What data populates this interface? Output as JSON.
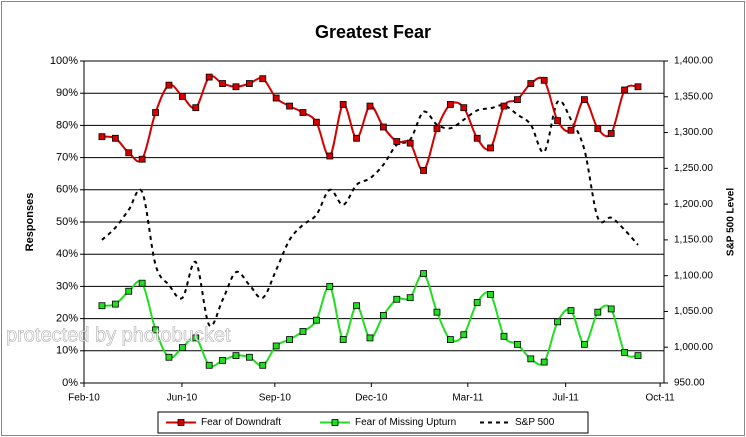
{
  "chart_data": {
    "type": "line",
    "title": "Greatest Fear",
    "y_label": "Responses",
    "y2_label": "S&P 500 Level",
    "watermark": "protected by photobucket",
    "categories": [
      null,
      null,
      null,
      null,
      null,
      null,
      null,
      null,
      null,
      null,
      null,
      null,
      null,
      null,
      null,
      null,
      null,
      null,
      null,
      null,
      null,
      null,
      null,
      null,
      null,
      null,
      null,
      null,
      null,
      null,
      null,
      null,
      null,
      null,
      null,
      null,
      null,
      null,
      null,
      null,
      null
    ],
    "xlim": [
      -1.34,
      41.94
    ],
    "xticks": [
      {
        "value": -1.34,
        "label": "Feb-10"
      },
      {
        "value": 5.97,
        "label": "Jun-10"
      },
      {
        "value": 12.9,
        "label": "Sep-10"
      },
      {
        "value": 20.1,
        "label": "Dec-10"
      },
      {
        "value": 27.3,
        "label": "Mar-11"
      },
      {
        "value": 34.6,
        "label": "Jul-11"
      },
      {
        "value": 41.65,
        "label": "Oct-11"
      }
    ],
    "ylim": [
      0,
      100
    ],
    "yticks": [
      {
        "value": 0,
        "label": "0%"
      },
      {
        "value": 10,
        "label": "10%"
      },
      {
        "value": 20,
        "label": "20%"
      },
      {
        "value": 30,
        "label": "30%"
      },
      {
        "value": 40,
        "label": "40%"
      },
      {
        "value": 50,
        "label": "50%"
      },
      {
        "value": 60,
        "label": "60%"
      },
      {
        "value": 70,
        "label": "70%"
      },
      {
        "value": 80,
        "label": "80%"
      },
      {
        "value": 90,
        "label": "90%"
      },
      {
        "value": 100,
        "label": "100%"
      }
    ],
    "y2lim": [
      950,
      1400
    ],
    "y2ticks": [
      {
        "value": 950,
        "label": "950.00"
      },
      {
        "value": 1000,
        "label": "1,000.00"
      },
      {
        "value": 1050,
        "label": "1,050.00"
      },
      {
        "value": 1100,
        "label": "1,100.00"
      },
      {
        "value": 1150,
        "label": "1,150.00"
      },
      {
        "value": 1200,
        "label": "1,200.00"
      },
      {
        "value": 1250,
        "label": "1,250.00"
      },
      {
        "value": 1300,
        "label": "1,300.00"
      },
      {
        "value": 1350,
        "label": "1,350.00"
      },
      {
        "value": 1400,
        "label": "1,400.00"
      }
    ],
    "grid": true,
    "legend": "bottom",
    "series": [
      {
        "name": "Fear of Downdraft",
        "color": "#d40000",
        "marker": "square",
        "style": "solid",
        "values": [
          76.5,
          76,
          71.5,
          69.5,
          84,
          92.5,
          89,
          85.5,
          95,
          93,
          92,
          93,
          94.5,
          88.5,
          86,
          84,
          81,
          70.5,
          86.5,
          76,
          86,
          79.5,
          75,
          74.5,
          66,
          79,
          86.5,
          85.5,
          76,
          73,
          86,
          88,
          93,
          94,
          81.5,
          78.5,
          88,
          79,
          77.5,
          91,
          92
        ]
      },
      {
        "name": "Fear of Missing Upturn",
        "color": "#22dd22",
        "marker": "square",
        "style": "solid",
        "values": [
          24,
          24.5,
          28.5,
          31,
          16.5,
          8,
          11,
          14,
          5.5,
          7,
          8.5,
          8,
          5.5,
          11.5,
          13.5,
          16,
          19.5,
          30,
          13.5,
          24,
          14,
          21,
          26,
          26.5,
          34,
          22,
          13.5,
          15,
          25,
          27.5,
          14.5,
          12,
          7.5,
          6.5,
          19,
          22.5,
          12,
          22,
          23,
          9.5,
          8.5
        ]
      },
      {
        "name": "S&P 500",
        "color": "#000000",
        "marker": "none",
        "style": "dashed",
        "axis": "y2",
        "values": [
          1150,
          1167,
          1192,
          1217,
          1115,
          1087,
          1069,
          1119,
          1031,
          1066,
          1105,
          1087,
          1069,
          1108,
          1150,
          1171,
          1185,
          1220,
          1199,
          1227,
          1236,
          1255,
          1283,
          1290,
          1329,
          1311,
          1306,
          1318,
          1331,
          1334,
          1338,
          1325,
          1311,
          1273,
          1343,
          1318,
          1276,
          1181,
          1181,
          1164,
          1143
        ]
      }
    ]
  }
}
